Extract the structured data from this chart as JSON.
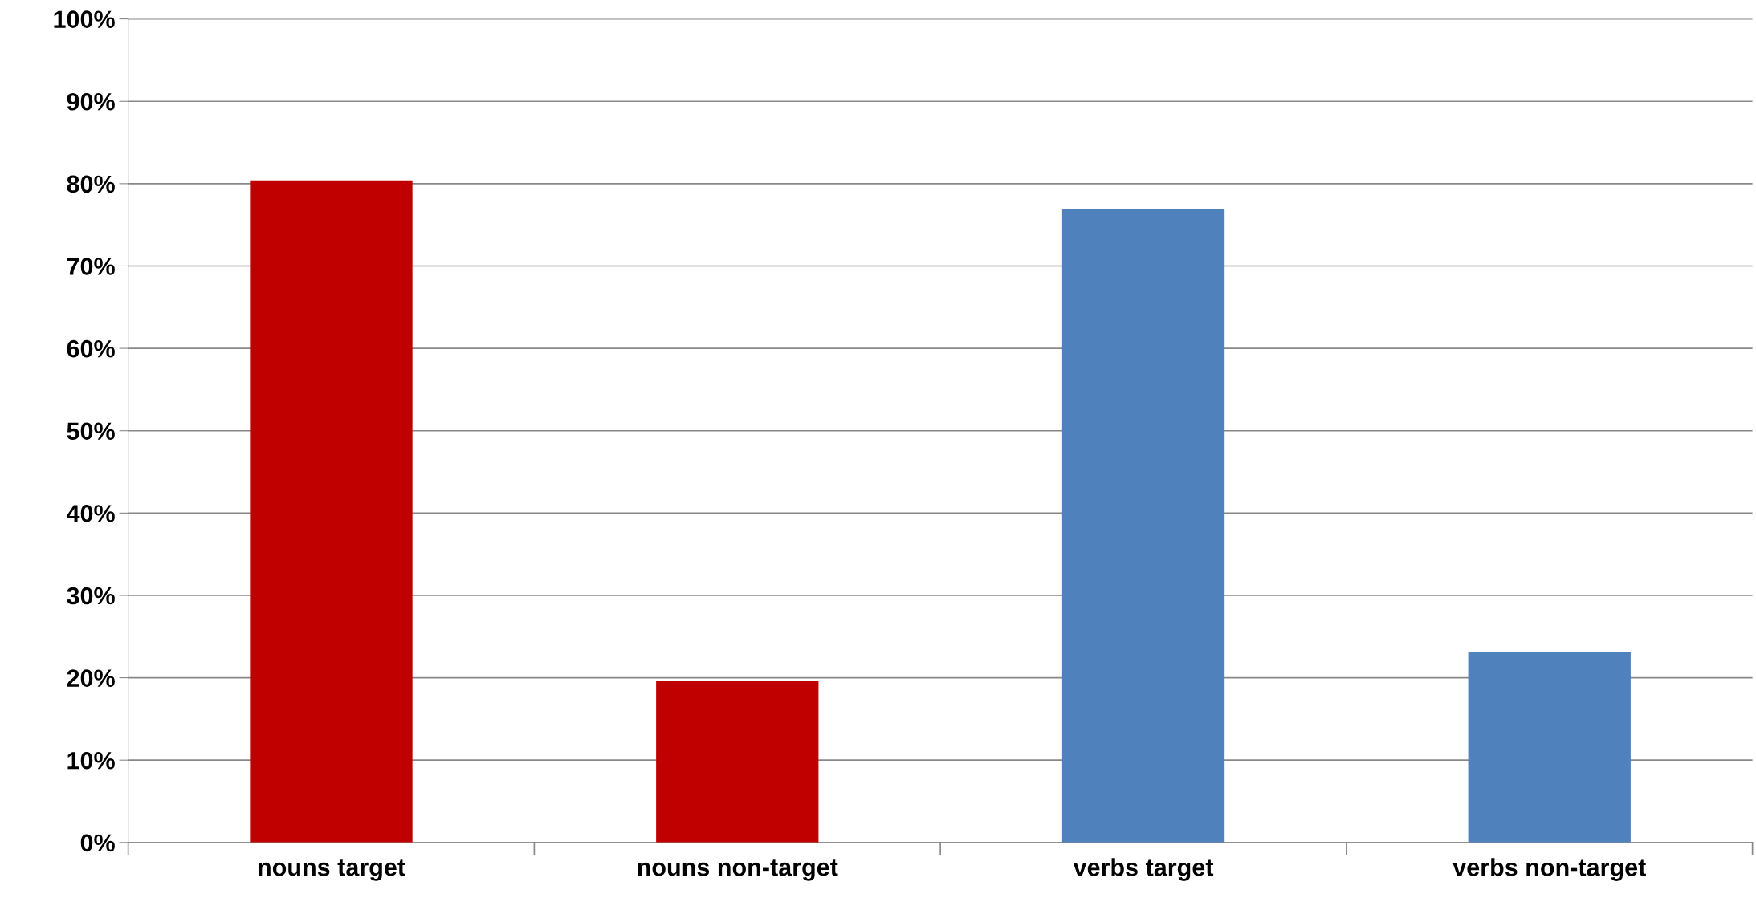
{
  "chart_data": {
    "type": "bar",
    "categories": [
      "nouns target",
      "nouns non-target",
      "verbs target",
      "verbs non-target"
    ],
    "values": [
      80.4,
      19.6,
      76.9,
      23.1
    ],
    "colors": [
      "#c00000",
      "#c00000",
      "#4f81bd",
      "#4f81bd"
    ],
    "ylim": [
      0,
      100
    ],
    "yticks": [
      {
        "value": 0,
        "label": "0%"
      },
      {
        "value": 10,
        "label": "10%"
      },
      {
        "value": 20,
        "label": "20%"
      },
      {
        "value": 30,
        "label": "30%"
      },
      {
        "value": 40,
        "label": "40%"
      },
      {
        "value": 50,
        "label": "50%"
      },
      {
        "value": 60,
        "label": "60%"
      },
      {
        "value": 70,
        "label": "70%"
      },
      {
        "value": 80,
        "label": "80%"
      },
      {
        "value": 90,
        "label": "90%"
      },
      {
        "value": 100,
        "label": "100%"
      }
    ],
    "grid": "y"
  }
}
